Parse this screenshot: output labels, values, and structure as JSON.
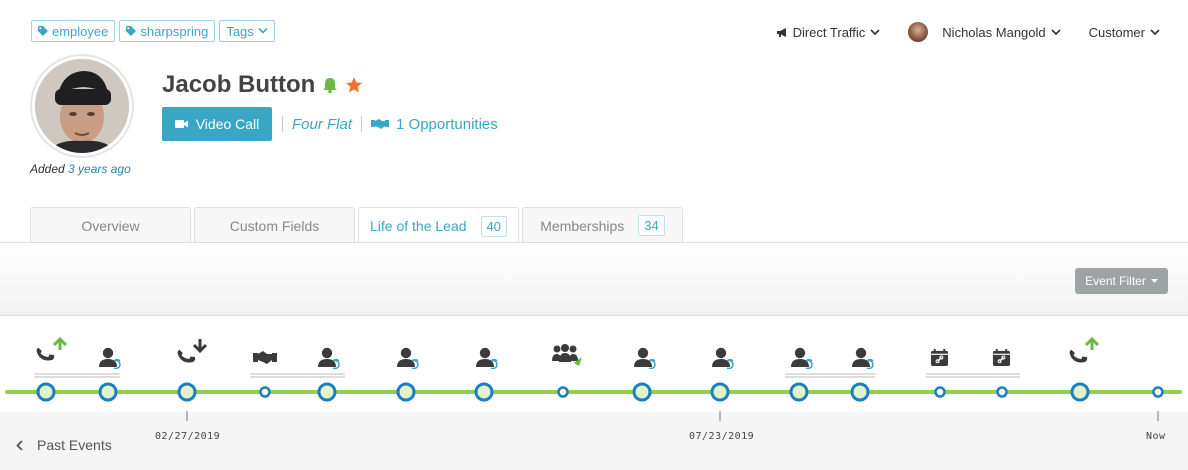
{
  "tags": [
    {
      "label": "employee",
      "icon": "tag-icon"
    },
    {
      "label": "sharpspring",
      "icon": "tag-icon"
    }
  ],
  "tags_dropdown": "Tags",
  "topbar": {
    "traffic_source": "Direct Traffic",
    "user_name": "Nicholas Mangold",
    "role": "Customer"
  },
  "profile": {
    "name": "Jacob Button",
    "added_prefix": "Added",
    "added_ago": "3 years ago",
    "video_call_label": "Video Call",
    "company": "Four Flat",
    "opportunities": "1 Opportunities"
  },
  "tabs": [
    {
      "label": "Overview",
      "count": ""
    },
    {
      "label": "Custom Fields",
      "count": ""
    },
    {
      "label": "Life of the Lead",
      "count": "40",
      "active": true
    },
    {
      "label": "Memberships",
      "count": "34"
    }
  ],
  "event_filter_label": "Event Filter",
  "timeline": {
    "past_events_label": "Past Events",
    "dates": [
      "02/27/2019",
      "07/23/2019",
      "Now"
    ],
    "events": [
      {
        "icon": "outgoing-call-icon",
        "size": "large"
      },
      {
        "icon": "contact-update-icon",
        "size": "large"
      },
      {
        "icon": "incoming-call-icon",
        "size": "large"
      },
      {
        "icon": "handshake-icon",
        "size": "small"
      },
      {
        "icon": "contact-update-icon",
        "size": "large"
      },
      {
        "icon": "contact-update-icon",
        "size": "large"
      },
      {
        "icon": "contact-update-icon",
        "size": "large"
      },
      {
        "icon": "group-send-icon",
        "size": "small"
      },
      {
        "icon": "contact-update-icon",
        "size": "large"
      },
      {
        "icon": "contact-update-icon",
        "size": "large"
      },
      {
        "icon": "contact-update-icon",
        "size": "large"
      },
      {
        "icon": "contact-update-icon",
        "size": "large"
      },
      {
        "icon": "calendar-link-icon",
        "size": "small"
      },
      {
        "icon": "calendar-link-icon",
        "size": "small"
      },
      {
        "icon": "outgoing-call-icon",
        "size": "large"
      },
      {
        "icon": "",
        "size": "small"
      }
    ]
  },
  "colors": {
    "accent": "#3aa6c5",
    "timeline_green": "#8fd14f",
    "node_blue": "#1a7fc0",
    "bell_green": "#6bb843",
    "star_orange": "#f07130"
  }
}
